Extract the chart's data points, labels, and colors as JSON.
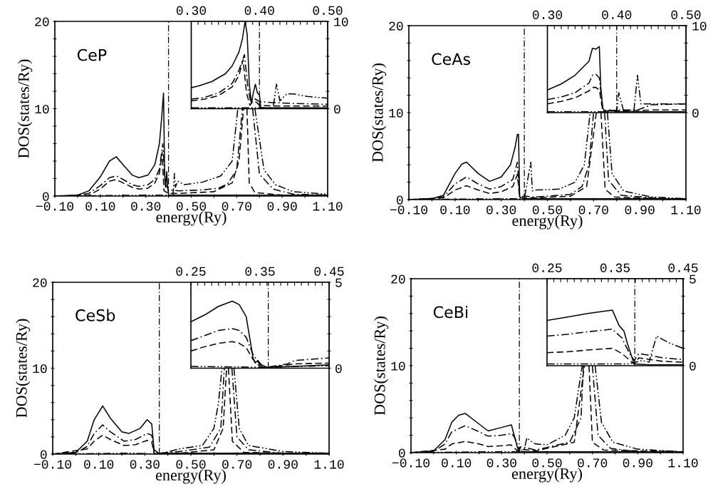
{
  "chart_data": [
    {
      "type": "line",
      "xlabel": "energy(Ry)",
      "ylabel": "DOS(states/Ry)",
      "annotations": [
        "CeP"
      ],
      "xlim": [
        -0.1,
        1.1
      ],
      "ylim": [
        0,
        20
      ],
      "xticks": [
        {
          "value": -0.1,
          "label": "−0.10"
        },
        {
          "value": 0,
          "label": null
        },
        {
          "value": 0.1,
          "label": "0.10"
        },
        {
          "value": 0.2,
          "label": null
        },
        {
          "value": 0.3,
          "label": "0.30"
        },
        {
          "value": 0.4,
          "label": null
        },
        {
          "value": 0.5,
          "label": "0.50"
        },
        {
          "value": 0.6,
          "label": null
        },
        {
          "value": 0.7,
          "label": "0.70"
        },
        {
          "value": 0.8,
          "label": null
        },
        {
          "value": 0.9,
          "label": "0.90"
        },
        {
          "value": 1.0,
          "label": null
        },
        {
          "value": 1.1,
          "label": "1.10"
        }
      ],
      "yticks": [
        0,
        {
          "value": 2,
          "label": null
        },
        {
          "value": 4,
          "label": null
        },
        {
          "value": 6,
          "label": null
        },
        {
          "value": 8,
          "label": null
        },
        10,
        {
          "value": 12,
          "label": null
        },
        {
          "value": 14,
          "label": null
        },
        {
          "value": 16,
          "label": null
        },
        {
          "value": 18,
          "label": null
        },
        20
      ],
      "ref_lines": [
        {
          "axis": "x",
          "value": 0.4,
          "color": "#000000",
          "line_style": "dashdot"
        }
      ],
      "series": [
        {
          "color": "#000000",
          "line_style": "solid",
          "x": [
            -0.1,
            0.0,
            0.05,
            0.1,
            0.14,
            0.17,
            0.2,
            0.24,
            0.27,
            0.31,
            0.34,
            0.36,
            0.37,
            0.378,
            0.383,
            0.387,
            0.392,
            0.396,
            0.4,
            0.45,
            1.1
          ],
          "values": [
            0,
            0.1,
            0.6,
            2.2,
            4.0,
            4.5,
            3.6,
            2.4,
            2.1,
            2.4,
            3.6,
            6.0,
            9.0,
            11.8,
            2.5,
            1.0,
            2.8,
            1.2,
            0.1,
            0.1,
            0.1
          ]
        },
        {
          "color": "#000000",
          "line_style": "dashdot",
          "x": [
            -0.1,
            0.0,
            0.05,
            0.1,
            0.14,
            0.17,
            0.2,
            0.24,
            0.27,
            0.31,
            0.34,
            0.36,
            0.375,
            0.385,
            0.4,
            0.45,
            0.55,
            0.62,
            0.66,
            0.7,
            0.725,
            null,
            0.77,
            0.8,
            0.86,
            0.95,
            1.1
          ],
          "values": [
            0,
            0.1,
            0.3,
            1.2,
            2.1,
            2.3,
            1.9,
            1.3,
            1.1,
            1.3,
            1.9,
            3.1,
            6.0,
            1.5,
            0.7,
            0.6,
            0.7,
            0.9,
            1.4,
            3.0,
            10,
            null,
            10,
            2.5,
            0.8,
            0.2,
            0.1
          ]
        },
        {
          "color": "#000000",
          "line_style": "dashed",
          "x": [
            -0.1,
            0.05,
            0.1,
            0.14,
            0.17,
            0.2,
            0.24,
            0.27,
            0.31,
            0.34,
            0.36,
            0.372,
            0.38,
            0.4,
            0.45,
            0.6,
            0.68,
            0.71,
            0.73,
            null,
            0.745,
            0.755,
            0.78,
            0.9,
            1.1
          ],
          "values": [
            0,
            0.1,
            0.8,
            1.7,
            1.9,
            1.5,
            1.0,
            0.8,
            0.9,
            1.5,
            2.6,
            5.0,
            0.6,
            0.3,
            0.3,
            0.5,
            1.5,
            4.0,
            10,
            null,
            10,
            1.5,
            0.4,
            0.1,
            0
          ]
        },
        {
          "color": "#000000",
          "line_style": "dashdotdot",
          "x": [
            -0.1,
            0.3,
            0.42,
            0.426,
            0.43,
            0.44,
            0.47,
            0.55,
            0.63,
            0.68,
            0.705,
            null,
            0.78,
            0.82,
            0.87,
            0.95,
            1.1
          ],
          "values": [
            0,
            0.1,
            0.1,
            2.6,
            1.0,
            1.7,
            1.3,
            1.6,
            2.3,
            4.0,
            10,
            null,
            10,
            3.0,
            1.3,
            0.5,
            0.2
          ]
        }
      ]
    },
    {
      "type": "line",
      "xlim": [
        0.3,
        0.5
      ],
      "ylim": [
        0,
        10
      ],
      "xticks": [
        {
          "value": 0.3,
          "label": "0.30"
        },
        {
          "value": 0.31,
          "label": null
        },
        {
          "value": 0.32,
          "label": null
        },
        {
          "value": 0.33,
          "label": null
        },
        {
          "value": 0.34,
          "label": null
        },
        {
          "value": 0.35,
          "label": null
        },
        {
          "value": 0.36,
          "label": null
        },
        {
          "value": 0.37,
          "label": null
        },
        {
          "value": 0.38,
          "label": null
        },
        {
          "value": 0.39,
          "label": null
        },
        {
          "value": 0.4,
          "label": "0.40"
        },
        {
          "value": 0.41,
          "label": null
        },
        {
          "value": 0.42,
          "label": null
        },
        {
          "value": 0.43,
          "label": null
        },
        {
          "value": 0.44,
          "label": null
        },
        {
          "value": 0.45,
          "label": null
        },
        {
          "value": 0.46,
          "label": null
        },
        {
          "value": 0.47,
          "label": null
        },
        {
          "value": 0.48,
          "label": null
        },
        {
          "value": 0.49,
          "label": null
        },
        {
          "value": 0.5,
          "label": "0.50"
        }
      ],
      "yticks": [
        0,
        {
          "value": 2,
          "label": null
        },
        {
          "value": 4,
          "label": null
        },
        {
          "value": 6,
          "label": null
        },
        {
          "value": 8,
          "label": null
        },
        10
      ],
      "ref_lines": [
        {
          "axis": "x",
          "value": 0.4,
          "color": "#000000",
          "line_style": "dashdot"
        }
      ],
      "series": [
        {
          "color": "#000000",
          "line_style": "solid",
          "x": [
            0.3,
            0.31,
            0.33,
            0.35,
            0.36,
            0.37,
            0.375,
            0.379,
            0.382,
            0.385,
            0.388,
            0.391,
            0.394,
            0.397,
            0.4,
            0.402,
            0.41,
            0.45,
            0.5
          ],
          "values": [
            2.4,
            2.6,
            3.1,
            4.0,
            4.9,
            6.5,
            8.0,
            10,
            8.5,
            3.0,
            0.6,
            1.8,
            2.8,
            1.8,
            1.6,
            0.1,
            0.1,
            0.1,
            0.1
          ]
        },
        {
          "color": "#000000",
          "line_style": "dashdot",
          "x": [
            0.3,
            0.32,
            0.34,
            0.36,
            0.37,
            0.378,
            0.383,
            0.387,
            0.392,
            0.396,
            0.4,
            0.42,
            0.45,
            0.5
          ],
          "values": [
            1.1,
            1.3,
            1.8,
            2.9,
            4.4,
            6.2,
            2.5,
            0.8,
            1.2,
            1.0,
            0.8,
            0.7,
            0.6,
            0.5
          ]
        },
        {
          "color": "#000000",
          "line_style": "dashed",
          "x": [
            0.3,
            0.32,
            0.34,
            0.36,
            0.37,
            0.376,
            0.381,
            0.386,
            0.391,
            0.396,
            0.4,
            0.42,
            0.45,
            0.5
          ],
          "values": [
            0.9,
            1.1,
            1.5,
            2.5,
            3.8,
            5.6,
            1.8,
            0.4,
            0.9,
            0.7,
            0.4,
            0.3,
            0.3,
            0.3
          ]
        },
        {
          "color": "#000000",
          "line_style": "dashdotdot",
          "x": [
            0.3,
            0.42,
            0.425,
            0.43,
            0.44,
            0.45,
            0.47,
            0.5
          ],
          "values": [
            0.1,
            0.1,
            2.8,
            0.9,
            1.7,
            1.7,
            1.4,
            1.2
          ]
        }
      ]
    },
    {
      "type": "line",
      "xlabel": "energy(Ry)",
      "ylabel": "DOS(states/Ry)",
      "annotations": [
        "CeAs"
      ],
      "xlim": [
        -0.1,
        1.1
      ],
      "ylim": [
        0,
        20
      ],
      "xticks": [
        {
          "value": -0.1,
          "label": "−0.10"
        },
        {
          "value": 0,
          "label": null
        },
        {
          "value": 0.1,
          "label": "0.10"
        },
        {
          "value": 0.2,
          "label": null
        },
        {
          "value": 0.3,
          "label": "0.30"
        },
        {
          "value": 0.4,
          "label": null
        },
        {
          "value": 0.5,
          "label": "0.50"
        },
        {
          "value": 0.6,
          "label": null
        },
        {
          "value": 0.7,
          "label": "0.70"
        },
        {
          "value": 0.8,
          "label": null
        },
        {
          "value": 0.9,
          "label": "0.90"
        },
        {
          "value": 1.0,
          "label": null
        },
        {
          "value": 1.1,
          "label": "1.10"
        }
      ],
      "yticks": [
        0,
        {
          "value": 2,
          "label": null
        },
        {
          "value": 4,
          "label": null
        },
        {
          "value": 6,
          "label": null
        },
        {
          "value": 8,
          "label": null
        },
        10,
        {
          "value": 12,
          "label": null
        },
        {
          "value": 14,
          "label": null
        },
        {
          "value": 16,
          "label": null
        },
        {
          "value": 18,
          "label": null
        },
        20
      ],
      "ref_lines": [
        {
          "axis": "x",
          "value": 0.4,
          "color": "#000000",
          "line_style": "dashdot"
        }
      ],
      "series": [
        {
          "color": "#000000",
          "line_style": "solid",
          "x": [
            -0.1,
            0.0,
            0.05,
            0.1,
            0.13,
            0.15,
            0.2,
            0.25,
            0.3,
            0.34,
            0.36,
            0.37,
            0.375,
            0.38,
            0.4,
            1.1
          ],
          "values": [
            0,
            0.1,
            0.5,
            3.0,
            4.1,
            4.3,
            3.0,
            2.1,
            2.6,
            4.0,
            6.0,
            7.5,
            7.5,
            0.3,
            0.1,
            0.1
          ]
        },
        {
          "color": "#000000",
          "line_style": "dashdot",
          "x": [
            -0.1,
            0.0,
            0.05,
            0.1,
            0.15,
            0.2,
            0.25,
            0.3,
            0.35,
            0.37,
            0.38,
            0.4,
            0.45,
            0.6,
            0.65,
            0.68,
            0.7,
            null,
            0.748,
            0.765,
            0.82,
            1.0,
            1.1
          ],
          "values": [
            0,
            0.1,
            0.3,
            1.8,
            2.6,
            1.8,
            1.2,
            1.5,
            2.3,
            4.3,
            0.3,
            0.4,
            0.3,
            0.6,
            1.5,
            4.0,
            10,
            null,
            10,
            2.2,
            0.5,
            0.1,
            0
          ]
        },
        {
          "color": "#000000",
          "line_style": "dashed",
          "x": [
            -0.1,
            0.05,
            0.1,
            0.15,
            0.2,
            0.25,
            0.3,
            0.35,
            0.37,
            0.38,
            0.4,
            0.45,
            0.6,
            0.67,
            0.712,
            null,
            0.732,
            0.75,
            0.79,
            1.1
          ],
          "values": [
            0,
            0.2,
            1.1,
            1.6,
            1.1,
            0.7,
            0.9,
            1.5,
            2.9,
            0.2,
            0.2,
            0.2,
            0.4,
            1.5,
            10,
            null,
            10,
            1.2,
            0.3,
            0
          ]
        },
        {
          "color": "#000000",
          "line_style": "dashdotdot",
          "x": [
            -0.1,
            0.3,
            0.4,
            0.428,
            0.435,
            0.45,
            0.55,
            0.62,
            0.66,
            0.685,
            null,
            0.76,
            0.78,
            0.83,
            0.95,
            1.1
          ],
          "values": [
            0,
            0.1,
            0.1,
            4.3,
            1.0,
            1.1,
            1.2,
            2.0,
            4.0,
            10,
            null,
            10,
            3.0,
            1.0,
            0.3,
            0.1
          ]
        }
      ]
    },
    {
      "type": "line",
      "xlim": [
        0.3,
        0.5
      ],
      "ylim": [
        0,
        10
      ],
      "xticks": [
        {
          "value": 0.3,
          "label": "0.30"
        },
        {
          "value": 0.31,
          "label": null
        },
        {
          "value": 0.32,
          "label": null
        },
        {
          "value": 0.33,
          "label": null
        },
        {
          "value": 0.34,
          "label": null
        },
        {
          "value": 0.35,
          "label": null
        },
        {
          "value": 0.36,
          "label": null
        },
        {
          "value": 0.37,
          "label": null
        },
        {
          "value": 0.38,
          "label": null
        },
        {
          "value": 0.39,
          "label": null
        },
        {
          "value": 0.4,
          "label": "0.40"
        },
        {
          "value": 0.41,
          "label": null
        },
        {
          "value": 0.42,
          "label": null
        },
        {
          "value": 0.43,
          "label": null
        },
        {
          "value": 0.44,
          "label": null
        },
        {
          "value": 0.45,
          "label": null
        },
        {
          "value": 0.46,
          "label": null
        },
        {
          "value": 0.47,
          "label": null
        },
        {
          "value": 0.48,
          "label": null
        },
        {
          "value": 0.49,
          "label": null
        },
        {
          "value": 0.5,
          "label": "0.50"
        }
      ],
      "yticks": [
        0,
        {
          "value": 2,
          "label": null
        },
        {
          "value": 4,
          "label": null
        },
        {
          "value": 6,
          "label": null
        },
        {
          "value": 8,
          "label": null
        },
        10
      ],
      "ref_lines": [
        {
          "axis": "x",
          "value": 0.4,
          "color": "#000000",
          "line_style": "dashdot"
        }
      ],
      "series": [
        {
          "color": "#000000",
          "line_style": "solid",
          "x": [
            0.3,
            0.32,
            0.34,
            0.36,
            0.365,
            0.37,
            0.375,
            0.377,
            0.38,
            0.385,
            0.39,
            0.4,
            0.45,
            0.5
          ],
          "values": [
            2.6,
            3.3,
            4.3,
            5.9,
            7.4,
            7.3,
            7.6,
            3.0,
            0.5,
            0.0,
            0.3,
            0.1,
            0.1,
            0.1
          ]
        },
        {
          "color": "#000000",
          "line_style": "dashdot",
          "x": [
            0.3,
            0.32,
            0.34,
            0.36,
            0.365,
            0.37,
            0.375,
            0.38,
            0.39,
            0.4,
            0.43,
            0.44,
            0.45,
            0.5
          ],
          "values": [
            1.5,
            1.8,
            2.3,
            3.4,
            4.3,
            4.4,
            4.0,
            0.3,
            0.2,
            0.3,
            0.3,
            0.6,
            0.9,
            1.0
          ]
        },
        {
          "color": "#000000",
          "line_style": "dashed",
          "x": [
            0.3,
            0.32,
            0.34,
            0.36,
            0.365,
            0.37,
            0.375,
            0.38,
            0.4,
            0.45,
            0.5
          ],
          "values": [
            1.0,
            1.3,
            1.7,
            2.5,
            2.9,
            2.9,
            2.6,
            0.2,
            0.2,
            0.3,
            0.3
          ]
        },
        {
          "color": "#000000",
          "line_style": "dashdotdot",
          "x": [
            0.3,
            0.4,
            0.403,
            0.41,
            0.425,
            0.43,
            0.435,
            0.45,
            0.5
          ],
          "values": [
            0.1,
            0.1,
            2.3,
            0.2,
            0.3,
            4.3,
            1.0,
            1.0,
            1.0
          ]
        }
      ]
    },
    {
      "type": "line",
      "xlabel": "energy(Ry)",
      "ylabel": "DOS(states/Ry)",
      "annotations": [
        "CeSb"
      ],
      "xlim": [
        -0.1,
        1.1
      ],
      "ylim": [
        0,
        20
      ],
      "xticks": [
        {
          "value": -0.1,
          "label": "−0.10"
        },
        {
          "value": 0,
          "label": null
        },
        {
          "value": 0.1,
          "label": "0.10"
        },
        {
          "value": 0.2,
          "label": null
        },
        {
          "value": 0.3,
          "label": "0.30"
        },
        {
          "value": 0.4,
          "label": null
        },
        {
          "value": 0.5,
          "label": "0.50"
        },
        {
          "value": 0.6,
          "label": null
        },
        {
          "value": 0.7,
          "label": "0.70"
        },
        {
          "value": 0.8,
          "label": null
        },
        {
          "value": 0.9,
          "label": "0.90"
        },
        {
          "value": 1.0,
          "label": null
        },
        {
          "value": 1.1,
          "label": "1.10"
        }
      ],
      "yticks": [
        0,
        {
          "value": 2,
          "label": null
        },
        {
          "value": 4,
          "label": null
        },
        {
          "value": 6,
          "label": null
        },
        {
          "value": 8,
          "label": null
        },
        10,
        {
          "value": 12,
          "label": null
        },
        {
          "value": 14,
          "label": null
        },
        {
          "value": 16,
          "label": null
        },
        {
          "value": 18,
          "label": null
        },
        20
      ],
      "ref_lines": [
        {
          "axis": "x",
          "value": 0.363,
          "color": "#000000",
          "line_style": "dashdot"
        }
      ],
      "series": [
        {
          "color": "#000000",
          "line_style": "solid",
          "x": [
            -0.1,
            0.0,
            0.05,
            0.08,
            0.117,
            0.15,
            0.2,
            0.23,
            0.28,
            0.31,
            0.33,
            0.34,
            0.36,
            1.1
          ],
          "values": [
            0,
            0.2,
            1.5,
            4.0,
            5.6,
            4.2,
            2.6,
            2.4,
            3.0,
            4.0,
            3.5,
            0.5,
            0.1,
            0.1
          ]
        },
        {
          "color": "#000000",
          "line_style": "dashdot",
          "x": [
            -0.1,
            0.0,
            0.05,
            0.08,
            0.117,
            0.15,
            0.21,
            0.26,
            0.31,
            0.33,
            0.34,
            0.36,
            0.45,
            0.58,
            0.63,
            0.645,
            null,
            0.678,
            0.7,
            0.75,
            0.9,
            1.1
          ],
          "values": [
            0,
            0.1,
            0.9,
            2.4,
            3.4,
            2.6,
            1.5,
            1.7,
            2.4,
            2.2,
            0.2,
            0.1,
            0.3,
            0.8,
            3.0,
            10,
            null,
            10,
            2.0,
            0.5,
            0.1,
            0
          ]
        },
        {
          "color": "#000000",
          "line_style": "dashed",
          "x": [
            -0.1,
            0.05,
            0.08,
            0.117,
            0.15,
            0.21,
            0.26,
            0.31,
            0.33,
            0.34,
            0.36,
            0.45,
            0.6,
            0.64,
            0.655,
            null,
            0.663,
            0.68,
            0.73,
            1.1
          ],
          "values": [
            0,
            0.6,
            1.5,
            2.2,
            1.7,
            1.0,
            1.1,
            1.6,
            1.4,
            0.1,
            0,
            0.1,
            0.5,
            3.0,
            10,
            null,
            10,
            1.5,
            0.2,
            0
          ]
        },
        {
          "color": "#000000",
          "line_style": "dashdotdot",
          "x": [
            -0.1,
            0.25,
            0.36,
            0.45,
            0.55,
            0.6,
            0.62,
            0.635,
            null,
            0.687,
            0.71,
            0.75,
            0.9,
            1.1
          ],
          "values": [
            0,
            0.1,
            0,
            0.6,
            1.0,
            3.0,
            6.0,
            10,
            null,
            10,
            3.0,
            1.0,
            0.3,
            0.1
          ]
        }
      ]
    },
    {
      "type": "line",
      "xlim": [
        0.25,
        0.45
      ],
      "ylim": [
        0,
        5
      ],
      "xticks": [
        {
          "value": 0.25,
          "label": "0.25"
        },
        {
          "value": 0.26,
          "label": null
        },
        {
          "value": 0.27,
          "label": null
        },
        {
          "value": 0.28,
          "label": null
        },
        {
          "value": 0.29,
          "label": null
        },
        {
          "value": 0.3,
          "label": null
        },
        {
          "value": 0.31,
          "label": null
        },
        {
          "value": 0.32,
          "label": null
        },
        {
          "value": 0.33,
          "label": null
        },
        {
          "value": 0.34,
          "label": null
        },
        {
          "value": 0.35,
          "label": "0.35"
        },
        {
          "value": 0.36,
          "label": null
        },
        {
          "value": 0.37,
          "label": null
        },
        {
          "value": 0.38,
          "label": null
        },
        {
          "value": 0.39,
          "label": null
        },
        {
          "value": 0.4,
          "label": null
        },
        {
          "value": 0.41,
          "label": null
        },
        {
          "value": 0.42,
          "label": null
        },
        {
          "value": 0.43,
          "label": null
        },
        {
          "value": 0.44,
          "label": null
        },
        {
          "value": 0.45,
          "label": "0.45"
        }
      ],
      "yticks": [
        0,
        {
          "value": 1,
          "label": null
        },
        {
          "value": 2,
          "label": null
        },
        {
          "value": 3,
          "label": null
        },
        {
          "value": 4,
          "label": null
        },
        5
      ],
      "ref_lines": [
        {
          "axis": "x",
          "value": 0.362,
          "color": "#000000",
          "line_style": "dashdot"
        }
      ],
      "series": [
        {
          "color": "#000000",
          "line_style": "solid",
          "x": [
            0.25,
            0.27,
            0.29,
            0.31,
            0.32,
            0.33,
            0.335,
            0.34,
            0.343,
            0.347,
            0.352,
            0.36,
            0.4,
            0.45
          ],
          "values": [
            2.7,
            3.1,
            3.6,
            3.9,
            3.7,
            3.0,
            1.8,
            0.6,
            0.3,
            0.45,
            0.2,
            0.05,
            0.1,
            0.2
          ]
        },
        {
          "color": "#000000",
          "line_style": "dashdot",
          "x": [
            0.25,
            0.27,
            0.29,
            0.31,
            0.32,
            0.33,
            0.34,
            0.35,
            0.36,
            0.39,
            0.4,
            0.45
          ],
          "values": [
            1.6,
            1.9,
            2.2,
            2.3,
            2.2,
            1.8,
            0.8,
            0.2,
            0.05,
            0.25,
            0.45,
            0.6
          ]
        },
        {
          "color": "#000000",
          "line_style": "dashed",
          "x": [
            0.25,
            0.27,
            0.29,
            0.31,
            0.32,
            0.33,
            0.34,
            0.35,
            0.36,
            0.4,
            0.45
          ],
          "values": [
            1.0,
            1.25,
            1.45,
            1.55,
            1.45,
            1.2,
            0.5,
            0.1,
            0.02,
            0.25,
            0.3
          ]
        },
        {
          "color": "#000000",
          "line_style": "dashdotdot",
          "x": [
            0.25,
            0.36,
            0.45
          ],
          "values": [
            0.1,
            0.05,
            0.15
          ]
        }
      ]
    },
    {
      "type": "line",
      "xlabel": "energy(Ry)",
      "ylabel": "DOS(states/Ry)",
      "annotations": [
        "CeBi"
      ],
      "xlim": [
        -0.1,
        1.1
      ],
      "ylim": [
        0,
        20
      ],
      "xticks": [
        {
          "value": -0.1,
          "label": "−0.10"
        },
        {
          "value": 0,
          "label": null
        },
        {
          "value": 0.1,
          "label": "0.10"
        },
        {
          "value": 0.2,
          "label": null
        },
        {
          "value": 0.3,
          "label": "0.30"
        },
        {
          "value": 0.4,
          "label": null
        },
        {
          "value": 0.5,
          "label": "0.50"
        },
        {
          "value": 0.6,
          "label": null
        },
        {
          "value": 0.7,
          "label": "0.70"
        },
        {
          "value": 0.8,
          "label": null
        },
        {
          "value": 0.9,
          "label": "0.90"
        },
        {
          "value": 1.0,
          "label": null
        },
        {
          "value": 1.1,
          "label": "1.10"
        }
      ],
      "yticks": [
        0,
        {
          "value": 2,
          "label": null
        },
        {
          "value": 4,
          "label": null
        },
        {
          "value": 6,
          "label": null
        },
        {
          "value": 8,
          "label": null
        },
        10,
        {
          "value": 12,
          "label": null
        },
        {
          "value": 14,
          "label": null
        },
        {
          "value": 16,
          "label": null
        },
        {
          "value": 18,
          "label": null
        },
        20
      ],
      "ref_lines": [
        {
          "axis": "x",
          "value": 0.378,
          "color": "#000000",
          "line_style": "dashdot"
        }
      ],
      "series": [
        {
          "color": "#000000",
          "line_style": "solid",
          "x": [
            -0.1,
            0.0,
            0.05,
            0.08,
            0.11,
            0.14,
            0.2,
            0.24,
            0.3,
            0.343,
            0.36,
            0.375,
            1.1
          ],
          "values": [
            0,
            0.2,
            1.5,
            3.5,
            4.3,
            4.5,
            3.3,
            2.5,
            2.9,
            3.2,
            1.5,
            0.1,
            0.1
          ]
        },
        {
          "color": "#000000",
          "line_style": "dashdot",
          "x": [
            -0.1,
            0.0,
            0.05,
            0.08,
            0.14,
            0.2,
            0.24,
            0.3,
            0.345,
            0.36,
            0.378,
            0.385,
            0.45,
            0.6,
            0.65,
            0.66,
            null,
            0.7,
            0.725,
            0.78,
            0.9,
            1.1
          ],
          "values": [
            0,
            0.1,
            1.0,
            2.4,
            3.1,
            2.4,
            1.9,
            2.0,
            2.2,
            1.6,
            0.3,
            0.7,
            0.3,
            1.2,
            4.0,
            10,
            null,
            10,
            2.0,
            0.5,
            0.1,
            0
          ]
        },
        {
          "color": "#000000",
          "line_style": "dashed",
          "x": [
            -0.1,
            0.05,
            0.08,
            0.14,
            0.2,
            0.24,
            0.3,
            0.34,
            0.37,
            0.385,
            0.45,
            0.62,
            0.665,
            null,
            0.685,
            0.7,
            0.75,
            1.1
          ],
          "values": [
            0,
            0.4,
            1.0,
            1.3,
            1.0,
            0.7,
            0.8,
            0.9,
            0.2,
            0.4,
            0.2,
            1.2,
            10,
            null,
            10,
            1.2,
            0.3,
            0.1
          ]
        },
        {
          "color": "#000000",
          "line_style": "dashdotdot",
          "x": [
            -0.1,
            0.25,
            0.37,
            0.4,
            0.411,
            0.43,
            0.45,
            0.5,
            0.58,
            0.62,
            0.655,
            null,
            0.712,
            0.74,
            0.79,
            0.9,
            1.1
          ],
          "values": [
            0,
            0.1,
            0.1,
            0.4,
            1.7,
            1.3,
            1.0,
            0.9,
            2.0,
            4.0,
            10,
            null,
            10,
            3.5,
            1.2,
            0.4,
            0.1
          ]
        }
      ]
    },
    {
      "type": "line",
      "xlim": [
        0.25,
        0.45
      ],
      "ylim": [
        0,
        5
      ],
      "xticks": [
        {
          "value": 0.25,
          "label": "0.25"
        },
        {
          "value": 0.26,
          "label": null
        },
        {
          "value": 0.27,
          "label": null
        },
        {
          "value": 0.28,
          "label": null
        },
        {
          "value": 0.29,
          "label": null
        },
        {
          "value": 0.3,
          "label": null
        },
        {
          "value": 0.31,
          "label": null
        },
        {
          "value": 0.32,
          "label": null
        },
        {
          "value": 0.33,
          "label": null
        },
        {
          "value": 0.34,
          "label": null
        },
        {
          "value": 0.35,
          "label": "0.35"
        },
        {
          "value": 0.36,
          "label": null
        },
        {
          "value": 0.37,
          "label": null
        },
        {
          "value": 0.38,
          "label": null
        },
        {
          "value": 0.39,
          "label": null
        },
        {
          "value": 0.4,
          "label": null
        },
        {
          "value": 0.41,
          "label": null
        },
        {
          "value": 0.42,
          "label": null
        },
        {
          "value": 0.43,
          "label": null
        },
        {
          "value": 0.44,
          "label": null
        },
        {
          "value": 0.45,
          "label": "0.45"
        }
      ],
      "yticks": [
        0,
        {
          "value": 1,
          "label": null
        },
        {
          "value": 2,
          "label": null
        },
        {
          "value": 3,
          "label": null
        },
        {
          "value": 4,
          "label": null
        },
        5
      ],
      "ref_lines": [
        {
          "axis": "x",
          "value": 0.379,
          "color": "#000000",
          "line_style": "dashdot"
        }
      ],
      "series": [
        {
          "color": "#000000",
          "line_style": "solid",
          "x": [
            0.25,
            0.28,
            0.31,
            0.346,
            0.356,
            0.363,
            0.368,
            0.378,
            0.4,
            0.45
          ],
          "values": [
            2.6,
            2.8,
            3.0,
            3.2,
            2.3,
            2.0,
            1.3,
            0.1,
            0.05,
            0.05
          ]
        },
        {
          "color": "#000000",
          "line_style": "dashdot",
          "x": [
            0.25,
            0.28,
            0.31,
            0.346,
            0.36,
            0.37,
            0.378,
            0.385,
            0.4,
            0.42,
            0.45
          ],
          "values": [
            1.7,
            1.8,
            1.95,
            2.1,
            1.6,
            0.8,
            0.3,
            0.7,
            0.6,
            0.45,
            0.35
          ]
        },
        {
          "color": "#000000",
          "line_style": "dashed",
          "x": [
            0.25,
            0.28,
            0.31,
            0.346,
            0.36,
            0.378,
            0.385,
            0.42,
            0.45
          ],
          "values": [
            0.75,
            0.8,
            0.9,
            1.0,
            0.7,
            0.1,
            0.45,
            0.25,
            0.2
          ]
        },
        {
          "color": "#000000",
          "line_style": "dashdotdot",
          "x": [
            0.25,
            0.37,
            0.39,
            0.4,
            0.411,
            0.43,
            0.45
          ],
          "values": [
            0.1,
            0.1,
            0.3,
            0.2,
            1.7,
            1.3,
            1.0
          ]
        }
      ]
    }
  ]
}
